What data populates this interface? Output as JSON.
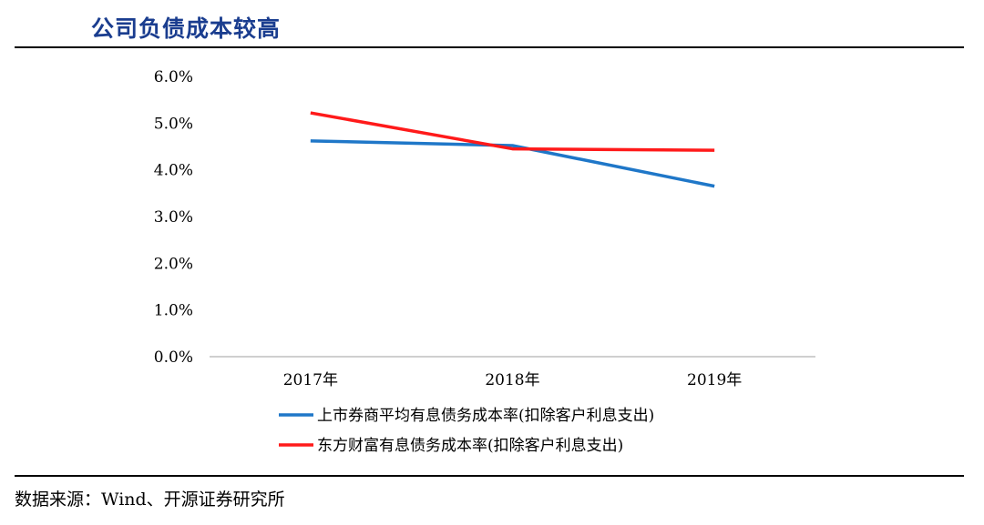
{
  "header": {
    "title": "公司负债成本较高"
  },
  "footer": {
    "source": "数据来源：Wind、开源证券研究所"
  },
  "chart_data": {
    "type": "line",
    "title": "公司负债成本较高",
    "xlabel": "",
    "ylabel": "",
    "categories": [
      "2017年",
      "2018年",
      "2019年"
    ],
    "ylim": [
      0,
      6.0
    ],
    "yticks": [
      "0.0%",
      "1.0%",
      "2.0%",
      "3.0%",
      "4.0%",
      "5.0%",
      "6.0%"
    ],
    "grid": false,
    "legend_position": "bottom",
    "series": [
      {
        "name": "上市券商平均有息债务成本率(扣除客户利息支出)",
        "values": [
          4.62,
          4.52,
          3.65
        ],
        "color": "#1f77c8"
      },
      {
        "name": "东方财富有息债务成本率(扣除客户利息支出)",
        "values": [
          5.22,
          4.45,
          4.42
        ],
        "color": "#ff1a1a"
      }
    ]
  }
}
